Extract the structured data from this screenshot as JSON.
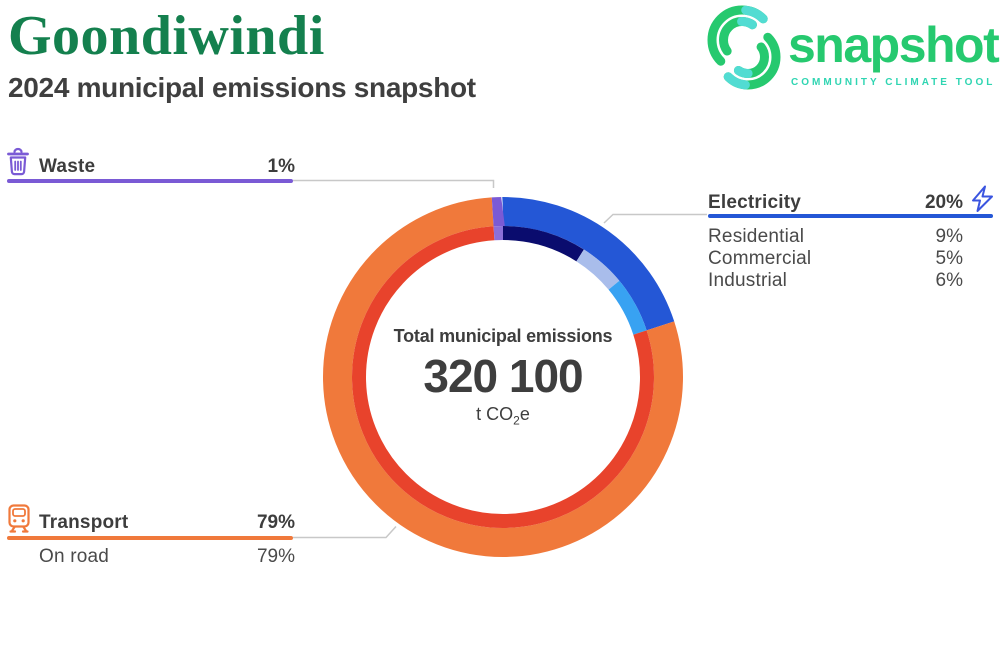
{
  "header": {
    "municipality": "Goondiwindi",
    "subtitle": "2024 municipal emissions snapshot",
    "title_color": "#14804E"
  },
  "logo": {
    "wordmark": "snapshot",
    "tagline": "COMMUNITY CLIMATE TOOL",
    "wordmark_color": "#26C96F",
    "tagline_color": "#2FD5B2",
    "mark_green": "#26C96F",
    "mark_teal": "#52DCD2"
  },
  "donut_center": {
    "label": "Total municipal emissions",
    "value": "320 100",
    "unit_prefix": "t CO",
    "unit_sub": "2",
    "unit_suffix": "e"
  },
  "sectors": {
    "waste": {
      "label": "Waste",
      "value": "1%",
      "color": "#7A5AD5"
    },
    "electricity": {
      "label": "Electricity",
      "value": "20%",
      "color": "#2457D6",
      "rows": [
        {
          "label": "Residential",
          "value": "9%"
        },
        {
          "label": "Commercial",
          "value": "5%"
        },
        {
          "label": "Industrial",
          "value": "6%"
        }
      ]
    },
    "transport": {
      "label": "Transport",
      "value": "79%",
      "color": "#F0793B",
      "rows": [
        {
          "label": "On road",
          "value": "79%"
        }
      ]
    }
  },
  "chart_data": {
    "type": "pie",
    "subtype": "double-ring donut",
    "title": "2024 municipal emissions snapshot — Goondiwindi",
    "center_label": "Total municipal emissions",
    "center_value": 320100,
    "center_value_display": "320 100",
    "unit": "t CO2e",
    "direction": "clockwise from 12 o'clock",
    "rings": {
      "outer": [
        {
          "name": "Electricity",
          "pct": 20,
          "color": "#2457D6"
        },
        {
          "name": "Transport",
          "pct": 79,
          "color": "#F0793B"
        },
        {
          "name": "Waste",
          "pct": 1,
          "color": "#7A5AD5"
        }
      ],
      "inner": [
        {
          "name": "Residential",
          "pct": 9,
          "color": "#0A0C6E"
        },
        {
          "name": "Commercial",
          "pct": 5,
          "color": "#A9BDEB"
        },
        {
          "name": "Industrial",
          "pct": 6,
          "color": "#38A2F2"
        },
        {
          "name": "On road",
          "pct": 79,
          "color": "#E8432C"
        },
        {
          "name": "Waste sub",
          "pct": 1,
          "color": "#8B6FD9"
        }
      ]
    }
  }
}
